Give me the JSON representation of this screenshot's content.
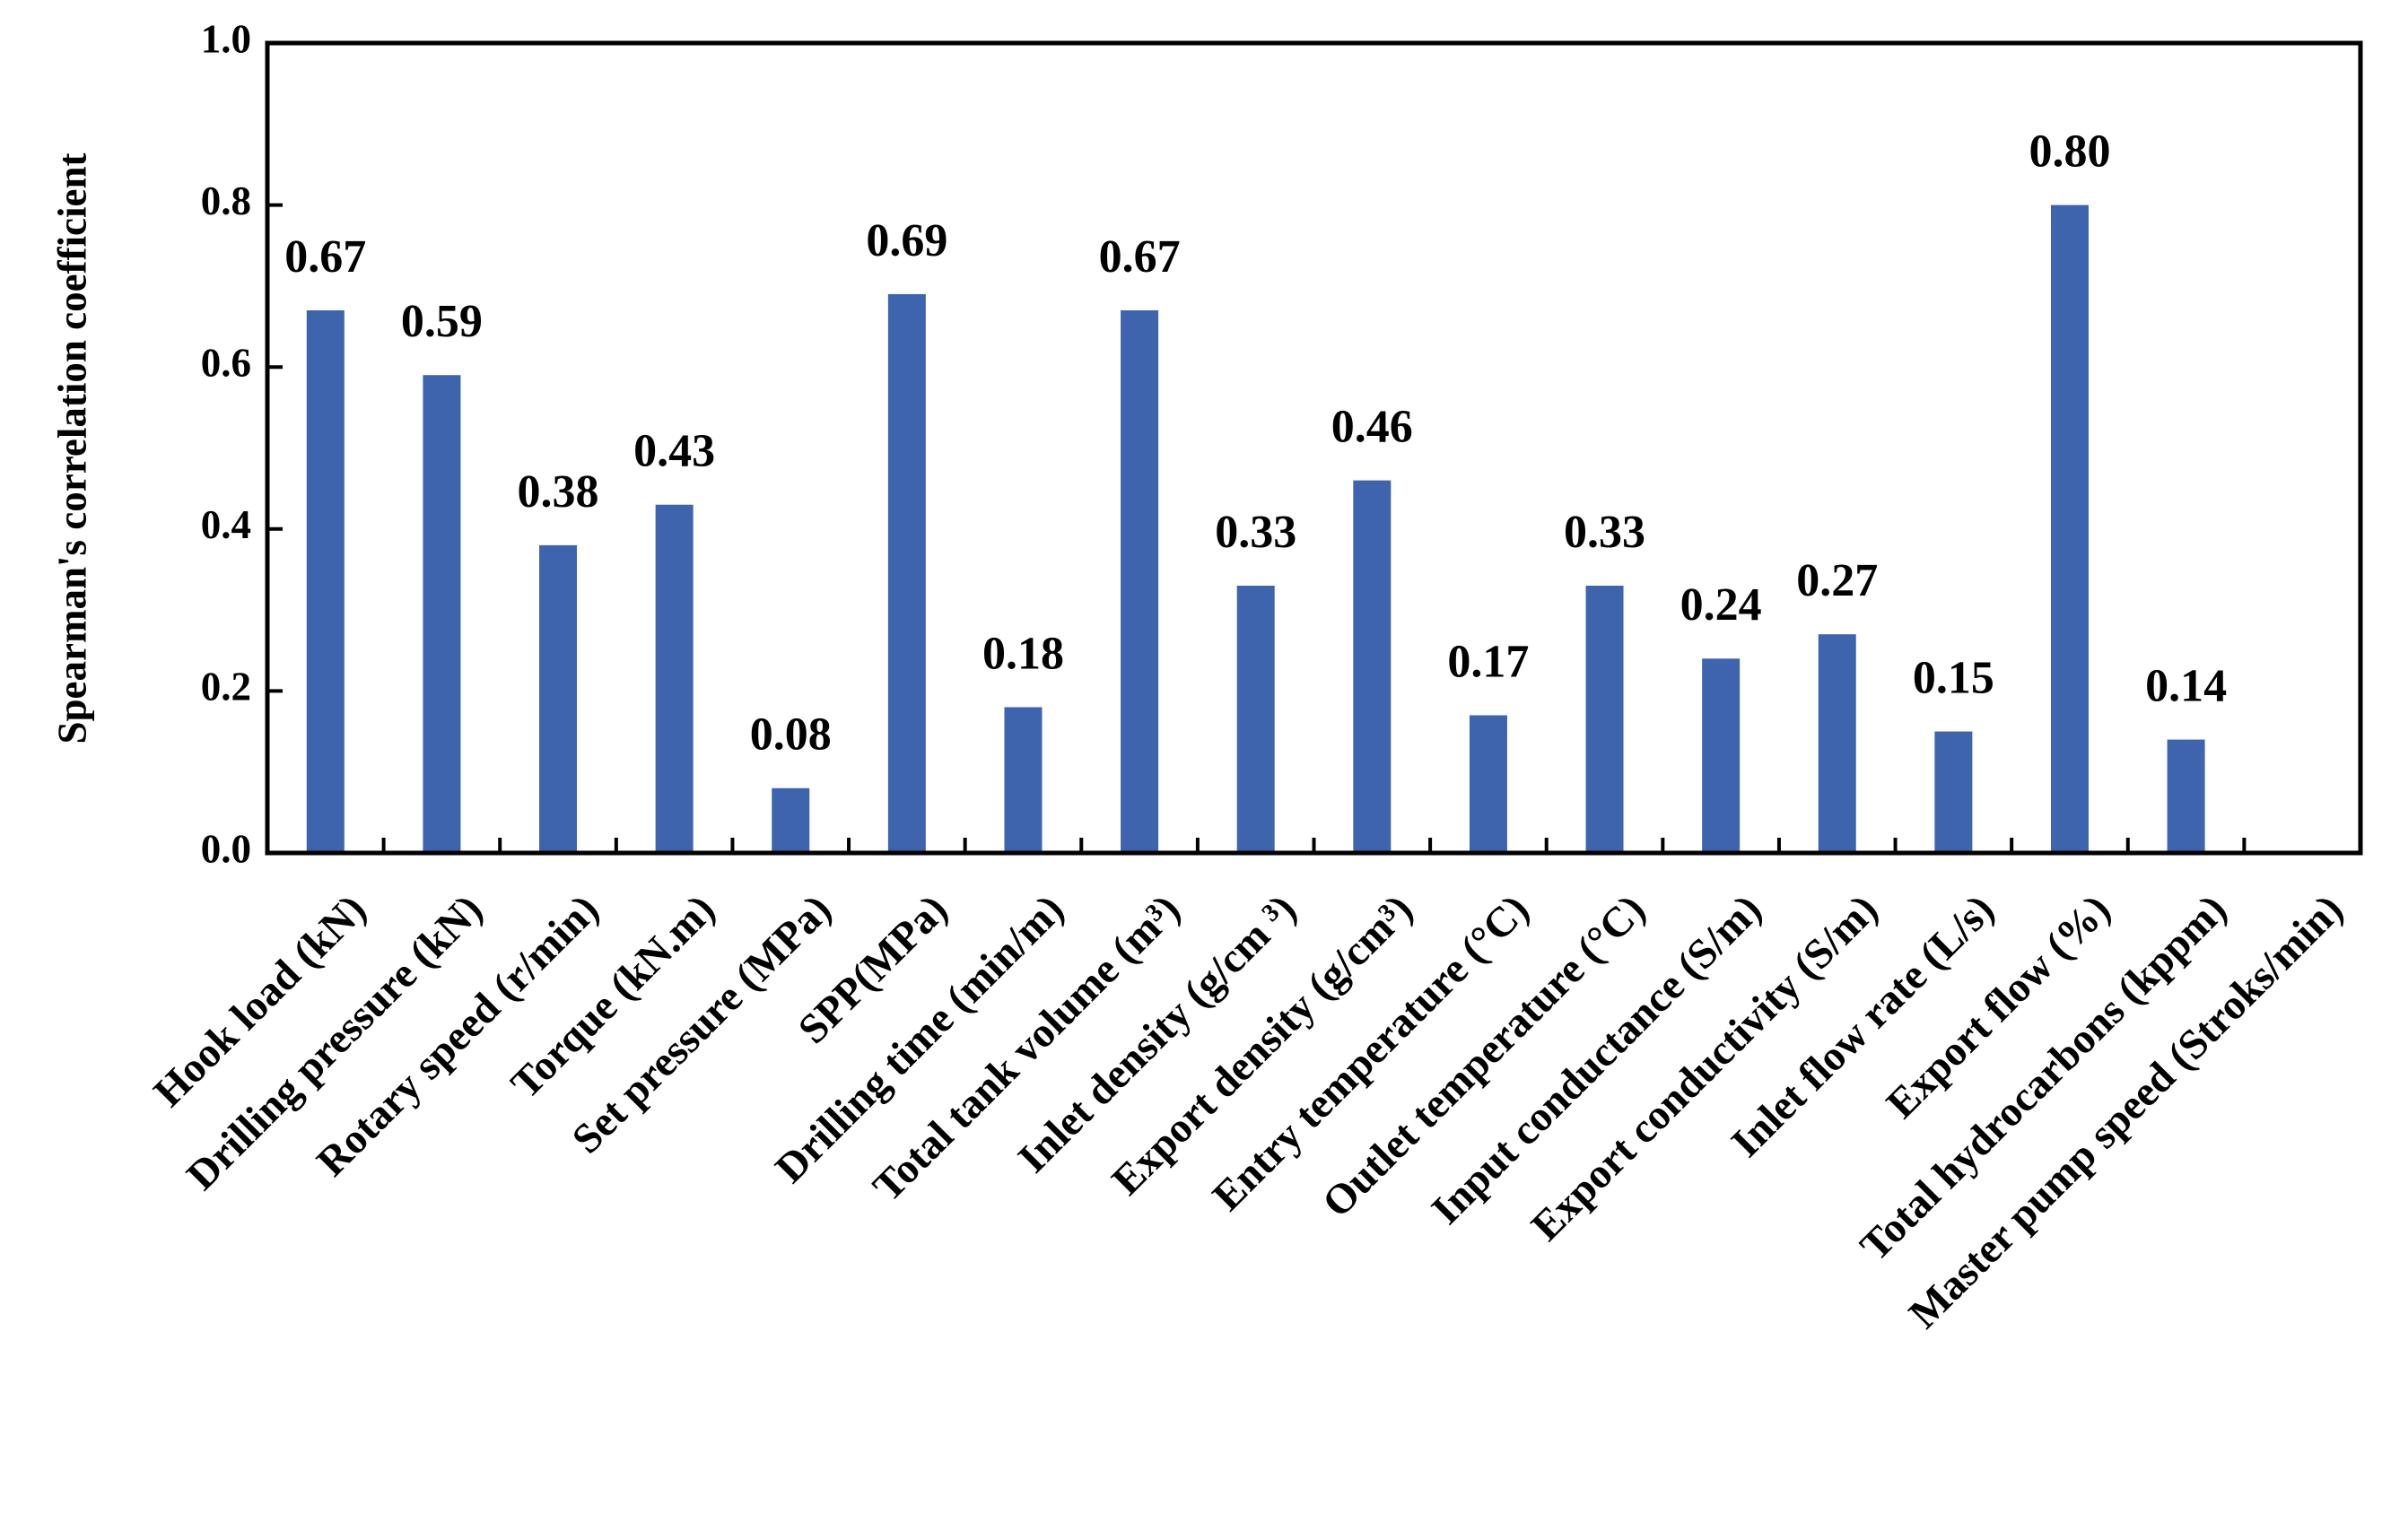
{
  "chart_data": {
    "type": "bar",
    "y_label": "Spearman's correlation coefficient",
    "categories": [
      "Hook load (kN)",
      "Drilling pressure (kN)",
      "Rotary speed (r/min)",
      "Torque (kN.m)",
      "Set pressure (MPa)",
      "SPP(MPa)",
      "Drilling time (min/m)",
      "Total tank volume (m³)",
      "Inlet density (g/cm ³)",
      "Export density (g/cm³)",
      "Entry temperature (°C)",
      "Outlet temperature (°C)",
      "Input conductance (S/m)",
      "Export conductivity (S/m)",
      "Inlet flow rate (L/s)",
      "Export flow (%)",
      "Total hydrocarbons (kppm)",
      "Master pump speed (Stroks/min)"
    ],
    "values": [
      0.67,
      0.59,
      0.38,
      0.43,
      0.08,
      0.69,
      0.18,
      0.67,
      0.33,
      0.46,
      0.17,
      0.33,
      0.24,
      0.27,
      0.15,
      0.8,
      0.14,
      null
    ],
    "value_labels": [
      "0.67",
      "0.59",
      "0.38",
      "0.43",
      "0.08",
      "0.69",
      "0.18",
      "0.67",
      "0.33",
      "0.46",
      "0.17",
      "0.33",
      "0.24",
      "0.27",
      "0.15",
      "0.80",
      "0.14",
      null
    ],
    "color": "#3d64ad",
    "label_color": "#ff0000",
    "ylim": [
      0,
      1
    ],
    "yticks": [
      {
        "value": 0,
        "label": "0.0"
      },
      {
        "value": 0.2,
        "label": "0.2"
      },
      {
        "value": 0.4,
        "label": "0.4"
      },
      {
        "value": 0.6,
        "label": "0.6"
      },
      {
        "value": 0.8,
        "label": "0.8"
      },
      {
        "value": 1,
        "label": "1.0"
      }
    ],
    "grid": false
  }
}
